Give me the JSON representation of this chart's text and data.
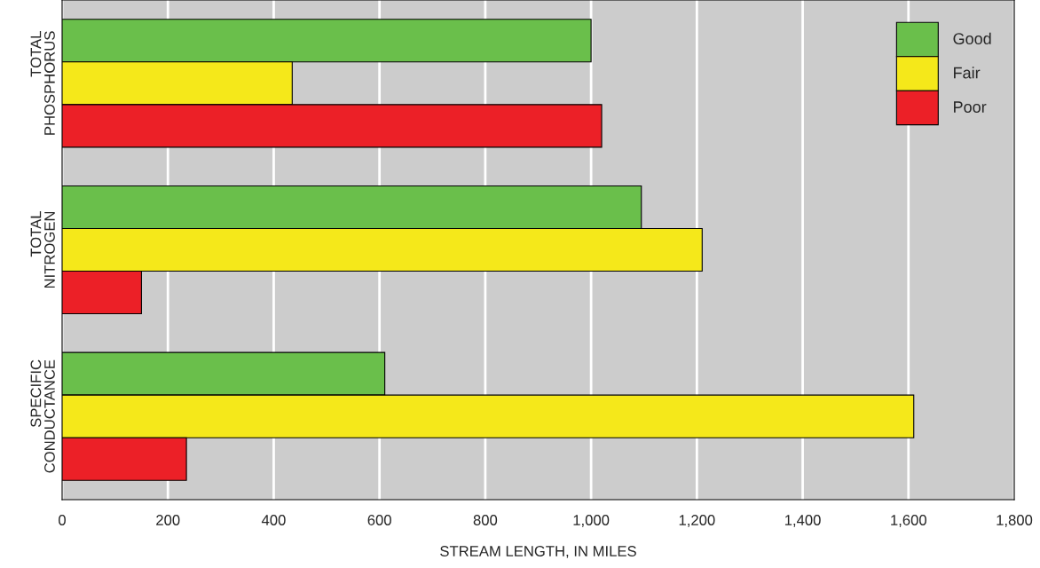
{
  "chart_data": {
    "type": "bar",
    "orientation": "horizontal",
    "categories": [
      "TOTAL\nPHOSPHORUS",
      "TOTAL\nNITROGEN",
      "SPECIFIC\nCONDUCTANCE"
    ],
    "series": [
      {
        "name": "Good",
        "color": "#6abf4b",
        "values": [
          1000,
          1095,
          610
        ]
      },
      {
        "name": "Fair",
        "color": "#f5e81a",
        "values": [
          435,
          1210,
          1610
        ]
      },
      {
        "name": "Poor",
        "color": "#ec2027",
        "values": [
          1020,
          150,
          235
        ]
      }
    ],
    "xlabel": "STREAM LENGTH, IN MILES",
    "xlim": [
      0,
      1800
    ],
    "xticks": [
      0,
      200,
      400,
      600,
      800,
      {
        "value": 1000,
        "label": "1,000"
      },
      {
        "value": 1200,
        "label": "1,200"
      },
      {
        "value": 1400,
        "label": "1,400"
      },
      {
        "value": 1600,
        "label": "1,600"
      },
      {
        "value": 1800,
        "label": "1,800"
      }
    ],
    "grid": "x",
    "legend": "top right"
  }
}
